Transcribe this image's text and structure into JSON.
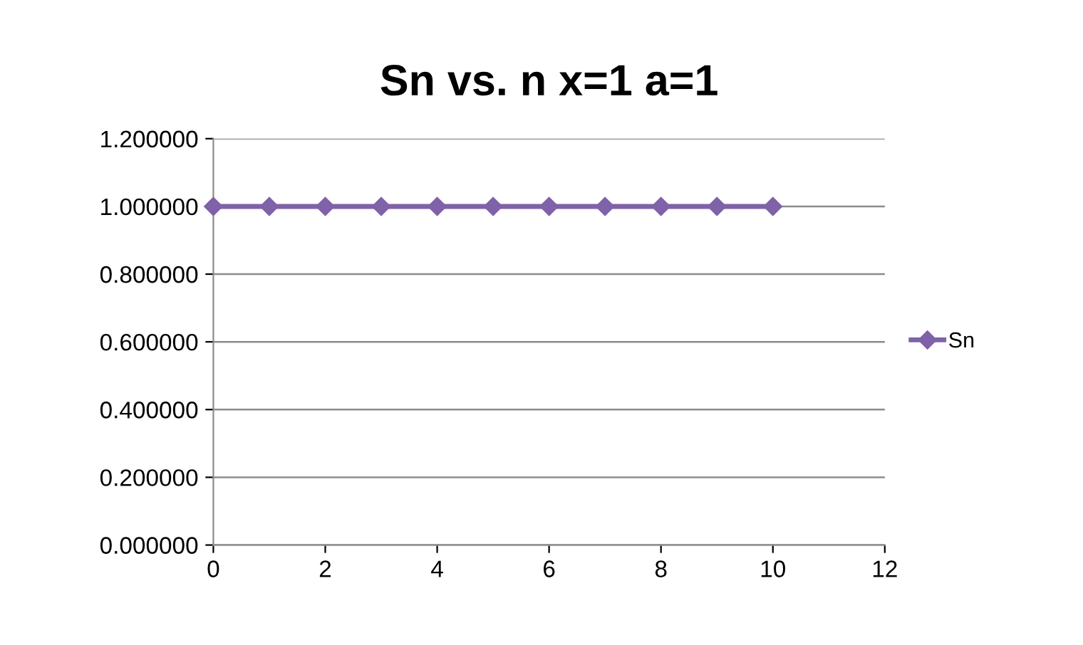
{
  "chart_data": {
    "type": "line",
    "title": "Sn vs. n x=1 a=1",
    "x": [
      0,
      1,
      2,
      3,
      4,
      5,
      6,
      7,
      8,
      9,
      10
    ],
    "series": [
      {
        "name": "Sn",
        "color": "#7f62a8",
        "values": [
          1,
          1,
          1,
          1,
          1,
          1,
          1,
          1,
          1,
          1,
          1
        ]
      }
    ],
    "xlim": [
      0,
      12
    ],
    "xticks": [
      0,
      2,
      4,
      6,
      8,
      10,
      12
    ],
    "ylim": [
      0,
      1.2
    ],
    "yticks": [
      {
        "value": 0,
        "label": "0.000000"
      },
      {
        "value": 0.2,
        "label": "0.200000"
      },
      {
        "value": 0.4,
        "label": "0.400000"
      },
      {
        "value": 0.6,
        "label": "0.600000"
      },
      {
        "value": 0.8,
        "label": "0.800000"
      },
      {
        "value": 1.0,
        "label": "1.000000"
      },
      {
        "value": 1.2,
        "label": "1.200000"
      }
    ],
    "grid": "y",
    "legend": "right",
    "marker": "diamond",
    "line_style": "solid"
  }
}
